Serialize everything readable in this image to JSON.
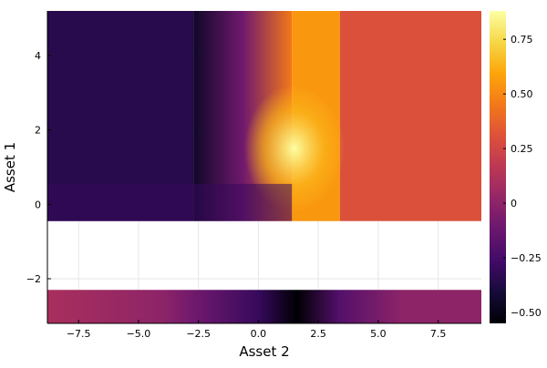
{
  "chart_data": {
    "type": "heatmap",
    "title": "",
    "xlabel": "Asset 2",
    "ylabel": "Asset 1",
    "xlim": [
      -8.8,
      9.3
    ],
    "ylim": [
      -3.2,
      5.2
    ],
    "xticks": [
      -7.5,
      -5.0,
      -2.5,
      0.0,
      2.5,
      5.0,
      7.5
    ],
    "xtick_labels": [
      "−7.5",
      "−5.0",
      "−2.5",
      "0.0",
      "2.5",
      "5.0",
      "7.5"
    ],
    "yticks": [
      -2,
      0,
      2,
      4
    ],
    "ytick_labels": [
      "−2",
      "0",
      "2",
      "4"
    ],
    "colorbar": {
      "colormap": "inferno",
      "range": [
        -0.55,
        0.88
      ],
      "ticks": [
        -0.5,
        -0.25,
        0,
        0.25,
        0.5,
        0.75
      ],
      "tick_labels": [
        "−0.50",
        "−0.25",
        "0",
        "0.25",
        "0.50",
        "0.75"
      ]
    },
    "grid": true,
    "regions": [
      {
        "x": [
          -8.8,
          -2.7
        ],
        "y": [
          -0.45,
          5.2
        ],
        "value": -0.35
      },
      {
        "x": [
          -2.7,
          1.4
        ],
        "y": [
          -0.45,
          5.2
        ],
        "value": 0.0
      },
      {
        "x": [
          1.4,
          3.4
        ],
        "y": [
          -0.45,
          5.2
        ],
        "value": 0.55
      },
      {
        "x": [
          3.4,
          9.3
        ],
        "y": [
          -0.45,
          5.2
        ],
        "value": 0.3
      },
      {
        "x": [
          -8.8,
          9.3
        ],
        "y": [
          -3.2,
          -2.3
        ],
        "value": 0.0
      }
    ],
    "peak": {
      "x": 1.5,
      "y": 1.5,
      "value": 0.88
    },
    "min": {
      "x": 1.6,
      "y": -2.6,
      "value": -0.55
    },
    "blank_band": {
      "y": [
        -2.3,
        -0.45
      ]
    }
  }
}
